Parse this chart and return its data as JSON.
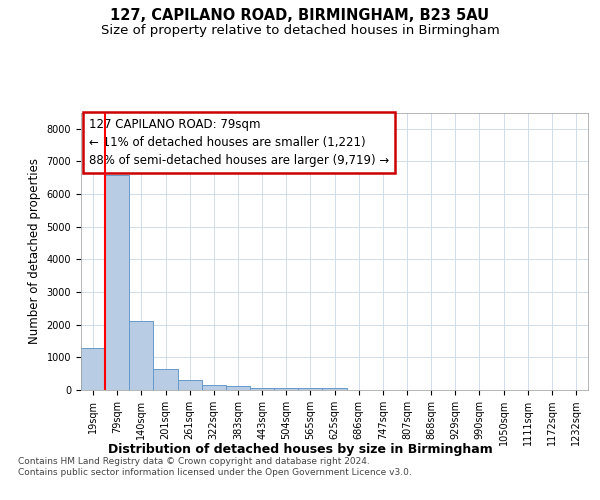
{
  "title1": "127, CAPILANO ROAD, BIRMINGHAM, B23 5AU",
  "title2": "Size of property relative to detached houses in Birmingham",
  "xlabel": "Distribution of detached houses by size in Birmingham",
  "ylabel": "Number of detached properties",
  "footnote": "Contains HM Land Registry data © Crown copyright and database right 2024.\nContains public sector information licensed under the Open Government Licence v3.0.",
  "bins": [
    "19sqm",
    "79sqm",
    "140sqm",
    "201sqm",
    "261sqm",
    "322sqm",
    "383sqm",
    "443sqm",
    "504sqm",
    "565sqm",
    "625sqm",
    "686sqm",
    "747sqm",
    "807sqm",
    "868sqm",
    "929sqm",
    "990sqm",
    "1050sqm",
    "1111sqm",
    "1172sqm",
    "1232sqm"
  ],
  "values": [
    1300,
    6600,
    2100,
    650,
    300,
    150,
    120,
    65,
    60,
    55,
    50,
    0,
    0,
    0,
    0,
    0,
    0,
    0,
    0,
    0,
    0
  ],
  "bar_color": "#b8cce4",
  "bar_edge_color": "#6699cc",
  "red_line_bar_index": 1,
  "annotation_text": "127 CAPILANO ROAD: 79sqm\n← 11% of detached houses are smaller (1,221)\n88% of semi-detached houses are larger (9,719) →",
  "annotation_box_color": "#ffffff",
  "annotation_border_color": "#cc0000",
  "ylim": [
    0,
    8500
  ],
  "yticks": [
    0,
    1000,
    2000,
    3000,
    4000,
    5000,
    6000,
    7000,
    8000
  ],
  "background_color": "#ffffff",
  "grid_color": "#d0dce8",
  "title1_fontsize": 10.5,
  "title2_fontsize": 9.5,
  "tick_fontsize": 7,
  "ylabel_fontsize": 8.5,
  "xlabel_fontsize": 9,
  "annotation_fontsize": 8.5,
  "footnote_fontsize": 6.5
}
